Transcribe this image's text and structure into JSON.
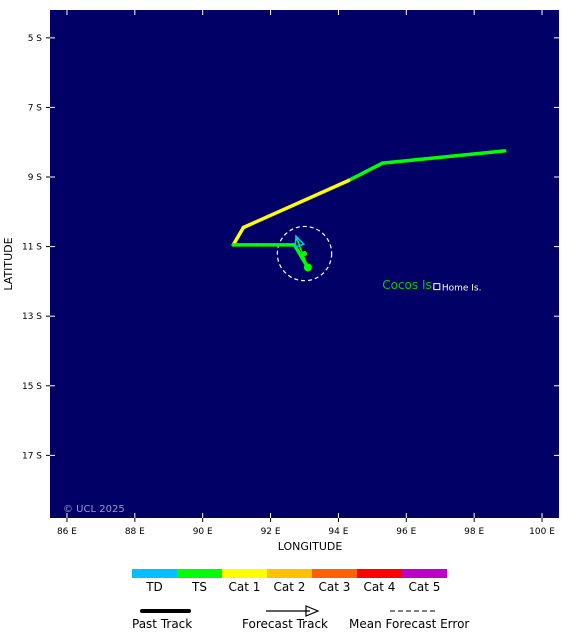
{
  "map": {
    "bounds": {
      "lon_min": 85.5,
      "lon_max": 100.5,
      "lat_north": -4.2,
      "lat_south": -18.8
    },
    "background_color": "#000066",
    "xlabel": "LONGITUDE",
    "ylabel": "LATITUDE",
    "copyright": "© UCL 2025",
    "lon_ticks": [
      {
        "value": 86,
        "label": "86 E"
      },
      {
        "value": 88,
        "label": "88 E"
      },
      {
        "value": 90,
        "label": "90 E"
      },
      {
        "value": 92,
        "label": "92 E"
      },
      {
        "value": 94,
        "label": "94 E"
      },
      {
        "value": 96,
        "label": "96 E"
      },
      {
        "value": 98,
        "label": "98 E"
      },
      {
        "value": 100,
        "label": "100 E"
      }
    ],
    "lat_ticks": [
      {
        "value": -5,
        "label": "5 S"
      },
      {
        "value": -7,
        "label": "7 S"
      },
      {
        "value": -9,
        "label": "9 S"
      },
      {
        "value": -11,
        "label": "11 S"
      },
      {
        "value": -13,
        "label": "13 S"
      },
      {
        "value": -15,
        "label": "15 S"
      },
      {
        "value": -17,
        "label": "17 S"
      }
    ],
    "places": [
      {
        "name": "Cocos Is.",
        "lon": 97.0,
        "lat": -12.1,
        "color": "#00cc00",
        "kind": "island-group"
      },
      {
        "name": "Home Is.",
        "lon": 96.9,
        "lat": -12.15,
        "color": "#ffffff",
        "kind": "town"
      }
    ]
  },
  "chart_data": {
    "type": "scatter",
    "past_track": [
      {
        "lon": 98.9,
        "lat": -8.25,
        "category": "TS"
      },
      {
        "lon": 95.3,
        "lat": -8.6,
        "category": "TS"
      },
      {
        "lon": 94.3,
        "lat": -9.1,
        "category": "TS"
      },
      {
        "lon": 91.2,
        "lat": -10.45,
        "category": "Cat 1"
      },
      {
        "lon": 90.9,
        "lat": -10.95,
        "category": "Cat 1"
      },
      {
        "lon": 91.6,
        "lat": -10.95,
        "category": "TS"
      },
      {
        "lon": 92.7,
        "lat": -10.95,
        "category": "TS"
      },
      {
        "lon": 93.1,
        "lat": -11.6,
        "category": "TS"
      }
    ],
    "forecast_track": [
      {
        "lon": 93.1,
        "lat": -11.6,
        "category": "TS"
      },
      {
        "lon": 92.9,
        "lat": -11.1,
        "category": "TS"
      },
      {
        "lon": 92.75,
        "lat": -10.7,
        "category": "TD"
      }
    ],
    "forecast_points": [
      {
        "lon": 93.0,
        "lat": -11.2
      }
    ],
    "forecast_error_circle": {
      "lon": 93.0,
      "lat": -11.2,
      "radius_deg": 0.8
    },
    "current_position": {
      "lon": 93.1,
      "lat": -11.6
    }
  },
  "legend": {
    "categories": [
      {
        "label": "TD",
        "color": "#00c0ff"
      },
      {
        "label": "TS",
        "color": "#00ff00"
      },
      {
        "label": "Cat 1",
        "color": "#ffff00"
      },
      {
        "label": "Cat 2",
        "color": "#ffc000"
      },
      {
        "label": "Cat 3",
        "color": "#ff6000"
      },
      {
        "label": "Cat 4",
        "color": "#ff0000"
      },
      {
        "label": "Cat 5",
        "color": "#c000c0"
      }
    ],
    "line_keys": [
      {
        "label": "Past Track",
        "style": "solid-thick"
      },
      {
        "label": "Forecast Track",
        "style": "arrow"
      },
      {
        "label": "Mean Forecast Error",
        "style": "dashed"
      }
    ]
  }
}
